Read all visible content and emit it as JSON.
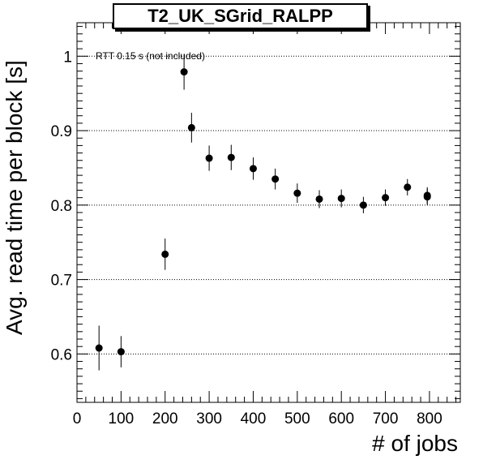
{
  "chart_data": {
    "type": "scatter",
    "title": "T2_UK_SGrid_RALPP",
    "xlabel": "# of jobs",
    "ylabel": "Avg. read time per block [s]",
    "annotation": "RTT 0.15 s (not included)",
    "xlim": [
      0,
      870
    ],
    "ylim": [
      0.535,
      1.045
    ],
    "xticks": [
      0,
      100,
      200,
      300,
      400,
      500,
      600,
      700,
      800
    ],
    "xtick_labels": [
      "0",
      "100",
      "200",
      "300",
      "400",
      "500",
      "600",
      "700",
      "800"
    ],
    "yticks": [
      0.6,
      0.7,
      0.8,
      0.9,
      1.0
    ],
    "ytick_labels": [
      "0.6",
      "0.7",
      "0.8",
      "0.9",
      "1"
    ],
    "grid": "horizontal dotted at major y ticks",
    "series": [
      {
        "color": "#000000",
        "points": [
          {
            "x": 50,
            "y": 0.608,
            "err": 0.03
          },
          {
            "x": 100,
            "y": 0.603,
            "err": 0.021
          },
          {
            "x": 200,
            "y": 0.734,
            "err": 0.021
          },
          {
            "x": 243,
            "y": 0.979,
            "err": 0.024
          },
          {
            "x": 260,
            "y": 0.904,
            "err": 0.02
          },
          {
            "x": 300,
            "y": 0.863,
            "err": 0.017
          },
          {
            "x": 350,
            "y": 0.864,
            "err": 0.017
          },
          {
            "x": 400,
            "y": 0.849,
            "err": 0.015
          },
          {
            "x": 450,
            "y": 0.835,
            "err": 0.014
          },
          {
            "x": 500,
            "y": 0.816,
            "err": 0.013
          },
          {
            "x": 550,
            "y": 0.808,
            "err": 0.012
          },
          {
            "x": 600,
            "y": 0.809,
            "err": 0.012
          },
          {
            "x": 650,
            "y": 0.8,
            "err": 0.011
          },
          {
            "x": 700,
            "y": 0.81,
            "err": 0.011
          },
          {
            "x": 750,
            "y": 0.824,
            "err": 0.011
          },
          {
            "x": 795,
            "y": 0.813,
            "err": 0.011
          },
          {
            "x": 795,
            "y": 0.811,
            "err": 0.011
          }
        ]
      }
    ]
  }
}
